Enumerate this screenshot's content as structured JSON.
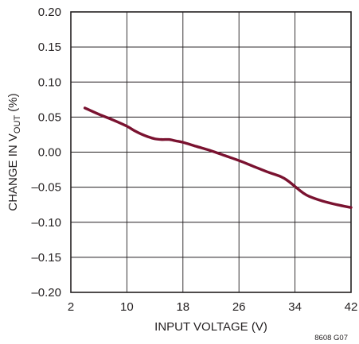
{
  "chart_data": {
    "type": "line",
    "xlabel": "INPUT VOLTAGE (V)",
    "ylabel": {
      "main": "CHANGE IN V",
      "sub": "OUT",
      "unit": " (%)"
    },
    "xlim": [
      2,
      42
    ],
    "ylim": [
      -0.2,
      0.2
    ],
    "grid": true,
    "x_ticks": [
      2,
      10,
      18,
      26,
      34,
      42
    ],
    "x_tick_labels": [
      "2",
      "10",
      "18",
      "26",
      "34",
      "42"
    ],
    "y_ticks": [
      0.2,
      0.15,
      0.1,
      0.05,
      0.0,
      -0.05,
      -0.1,
      -0.15,
      -0.2
    ],
    "y_tick_labels": [
      "0.20",
      "0.15",
      "0.10",
      "0.05",
      "0.00",
      "–0.05",
      "–0.10",
      "–0.15",
      "–0.20"
    ],
    "series": [
      {
        "color": "#7a1230",
        "x": [
          4,
          6,
          8,
          10,
          11,
          12,
          13,
          14,
          15,
          16,
          17,
          18,
          20,
          22,
          24,
          26,
          28,
          30,
          32,
          33,
          34,
          35,
          36,
          38,
          40,
          42
        ],
        "y": [
          0.063,
          0.054,
          0.046,
          0.037,
          0.031,
          0.026,
          0.022,
          0.019,
          0.018,
          0.018,
          0.016,
          0.014,
          0.008,
          0.002,
          -0.005,
          -0.012,
          -0.02,
          -0.028,
          -0.035,
          -0.041,
          -0.049,
          -0.057,
          -0.063,
          -0.07,
          -0.075,
          -0.079
        ]
      }
    ],
    "figure_code": "8608 G07"
  }
}
